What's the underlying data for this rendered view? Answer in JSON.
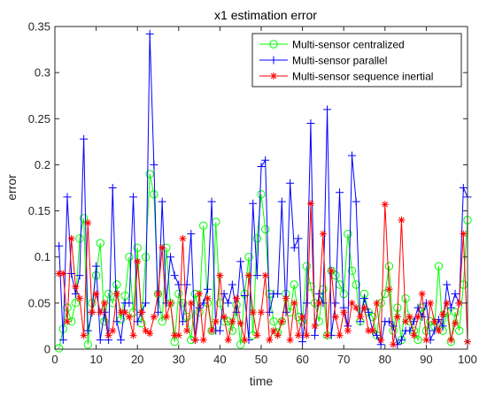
{
  "chart_data": {
    "type": "line",
    "title": "x1 estimation error",
    "xlabel": "time",
    "ylabel": "error",
    "xlim": [
      0,
      100
    ],
    "ylim": [
      0,
      0.35
    ],
    "xticks": [
      0,
      10,
      20,
      30,
      40,
      50,
      60,
      70,
      80,
      90,
      100
    ],
    "yticks": [
      0,
      0.05,
      0.1,
      0.15,
      0.2,
      0.25,
      0.3,
      0.35
    ],
    "ytick_labels": [
      "0",
      "0.05",
      "0.1",
      "0.15",
      "0.2",
      "0.25",
      "0.3",
      "0.35"
    ],
    "grid": false,
    "legend_position": "top-right",
    "x": [
      1,
      2,
      3,
      4,
      5,
      6,
      7,
      8,
      9,
      10,
      11,
      12,
      13,
      14,
      15,
      16,
      17,
      18,
      19,
      20,
      21,
      22,
      23,
      24,
      25,
      26,
      27,
      28,
      29,
      30,
      31,
      32,
      33,
      34,
      35,
      36,
      37,
      38,
      39,
      40,
      41,
      42,
      43,
      44,
      45,
      46,
      47,
      48,
      49,
      50,
      51,
      52,
      53,
      54,
      55,
      56,
      57,
      58,
      59,
      60,
      61,
      62,
      63,
      64,
      65,
      66,
      67,
      68,
      69,
      70,
      71,
      72,
      73,
      74,
      75,
      76,
      77,
      78,
      79,
      80,
      81,
      82,
      83,
      84,
      85,
      86,
      87,
      88,
      89,
      90,
      91,
      92,
      93,
      94,
      95,
      96,
      97,
      98,
      99,
      100
    ],
    "series": [
      {
        "name": "Multi-sensor centralized",
        "color": "#00ff00",
        "marker": "circle",
        "values": [
          0.001,
          0.022,
          0.045,
          0.03,
          0.05,
          0.12,
          0.142,
          0.005,
          0.05,
          0.08,
          0.115,
          0.03,
          0.06,
          0.05,
          0.07,
          0.032,
          0.058,
          0.1,
          0.04,
          0.11,
          0.028,
          0.1,
          0.19,
          0.168,
          0.06,
          0.03,
          0.11,
          0.05,
          0.008,
          0.06,
          0.05,
          0.035,
          0.01,
          0.06,
          0.04,
          0.134,
          0.05,
          0.02,
          0.138,
          0.05,
          0.03,
          0.03,
          0.02,
          0.048,
          0.005,
          0.06,
          0.1,
          0.015,
          0.12,
          0.168,
          0.13,
          0.06,
          0.03,
          0.018,
          0.03,
          0.06,
          0.04,
          0.07,
          0.035,
          0.03,
          0.09,
          0.068,
          0.05,
          0.03,
          0.065,
          0.015,
          0.085,
          0.08,
          0.07,
          0.06,
          0.125,
          0.085,
          0.07,
          0.03,
          0.06,
          0.04,
          0.035,
          0.015,
          0.05,
          0.06,
          0.09,
          0.02,
          0.045,
          0.01,
          0.055,
          0.03,
          0.02,
          0.01,
          0.045,
          0.02,
          0.03,
          0.025,
          0.09,
          0.02,
          0.04,
          0.008,
          0.04,
          0.02,
          0.07,
          0.14
        ]
      },
      {
        "name": "Multi-sensor parallel",
        "color": "#0000ff",
        "marker": "plus",
        "values": [
          0.112,
          0.01,
          0.165,
          0.082,
          0.06,
          0.08,
          0.228,
          0.02,
          0.04,
          0.09,
          0.01,
          0.04,
          0.01,
          0.175,
          0.03,
          0.01,
          0.05,
          0.05,
          0.165,
          0.03,
          0.04,
          0.05,
          0.342,
          0.2,
          0.04,
          0.16,
          0.05,
          0.1,
          0.08,
          0.07,
          0.03,
          0.07,
          0.125,
          0.01,
          0.045,
          0.05,
          0.065,
          0.16,
          0.02,
          0.02,
          0.06,
          0.05,
          0.07,
          0.04,
          0.095,
          0.058,
          0.01,
          0.158,
          0.08,
          0.198,
          0.205,
          0.04,
          0.06,
          0.06,
          0.16,
          0.04,
          0.18,
          0.11,
          0.12,
          0.008,
          0.05,
          0.245,
          0.015,
          0.06,
          0.05,
          0.26,
          0.015,
          0.05,
          0.17,
          0.045,
          0.025,
          0.21,
          0.16,
          0.03,
          0.055,
          0.04,
          0.02,
          0.015,
          0.005,
          0.03,
          0.03,
          0.025,
          0.005,
          0.01,
          0.02,
          0.02,
          0.03,
          0.045,
          0.035,
          0.05,
          0.01,
          0.02,
          0.032,
          0.025,
          0.07,
          0.045,
          0.06,
          0.05,
          0.175,
          0.165
        ]
      },
      {
        "name": "Multi-sensor sequence inertial",
        "color": "#ff0000",
        "marker": "asterisk",
        "values": [
          0.082,
          0.082,
          0.03,
          0.12,
          0.068,
          0.055,
          0.015,
          0.137,
          0.04,
          0.06,
          0.04,
          0.05,
          0.015,
          0.02,
          0.06,
          0.04,
          0.04,
          0.035,
          0.015,
          0.095,
          0.04,
          0.02,
          0.017,
          0.035,
          0.06,
          0.11,
          0.035,
          0.05,
          0.015,
          0.015,
          0.12,
          0.02,
          0.05,
          0.01,
          0.06,
          0.01,
          0.055,
          0.02,
          0.03,
          0.08,
          0.035,
          0.01,
          0.03,
          0.055,
          0.028,
          0.01,
          0.08,
          0.04,
          0.015,
          0.04,
          0.08,
          0.01,
          0.02,
          0.015,
          0.03,
          0.055,
          0.01,
          0.05,
          0.015,
          0.035,
          0.015,
          0.158,
          0.025,
          0.05,
          0.125,
          0.015,
          0.085,
          0.035,
          0.015,
          0.04,
          0.02,
          0.05,
          0.045,
          0.035,
          0.045,
          0.02,
          0.02,
          0.05,
          0.01,
          0.157,
          0.065,
          0.005,
          0.035,
          0.14,
          0.03,
          0.035,
          0.015,
          0.035,
          0.06,
          0.01,
          0.05,
          0.03,
          0.02,
          0.038,
          0.05,
          0.01,
          0.028,
          0.05,
          0.125,
          0.008
        ]
      }
    ]
  }
}
